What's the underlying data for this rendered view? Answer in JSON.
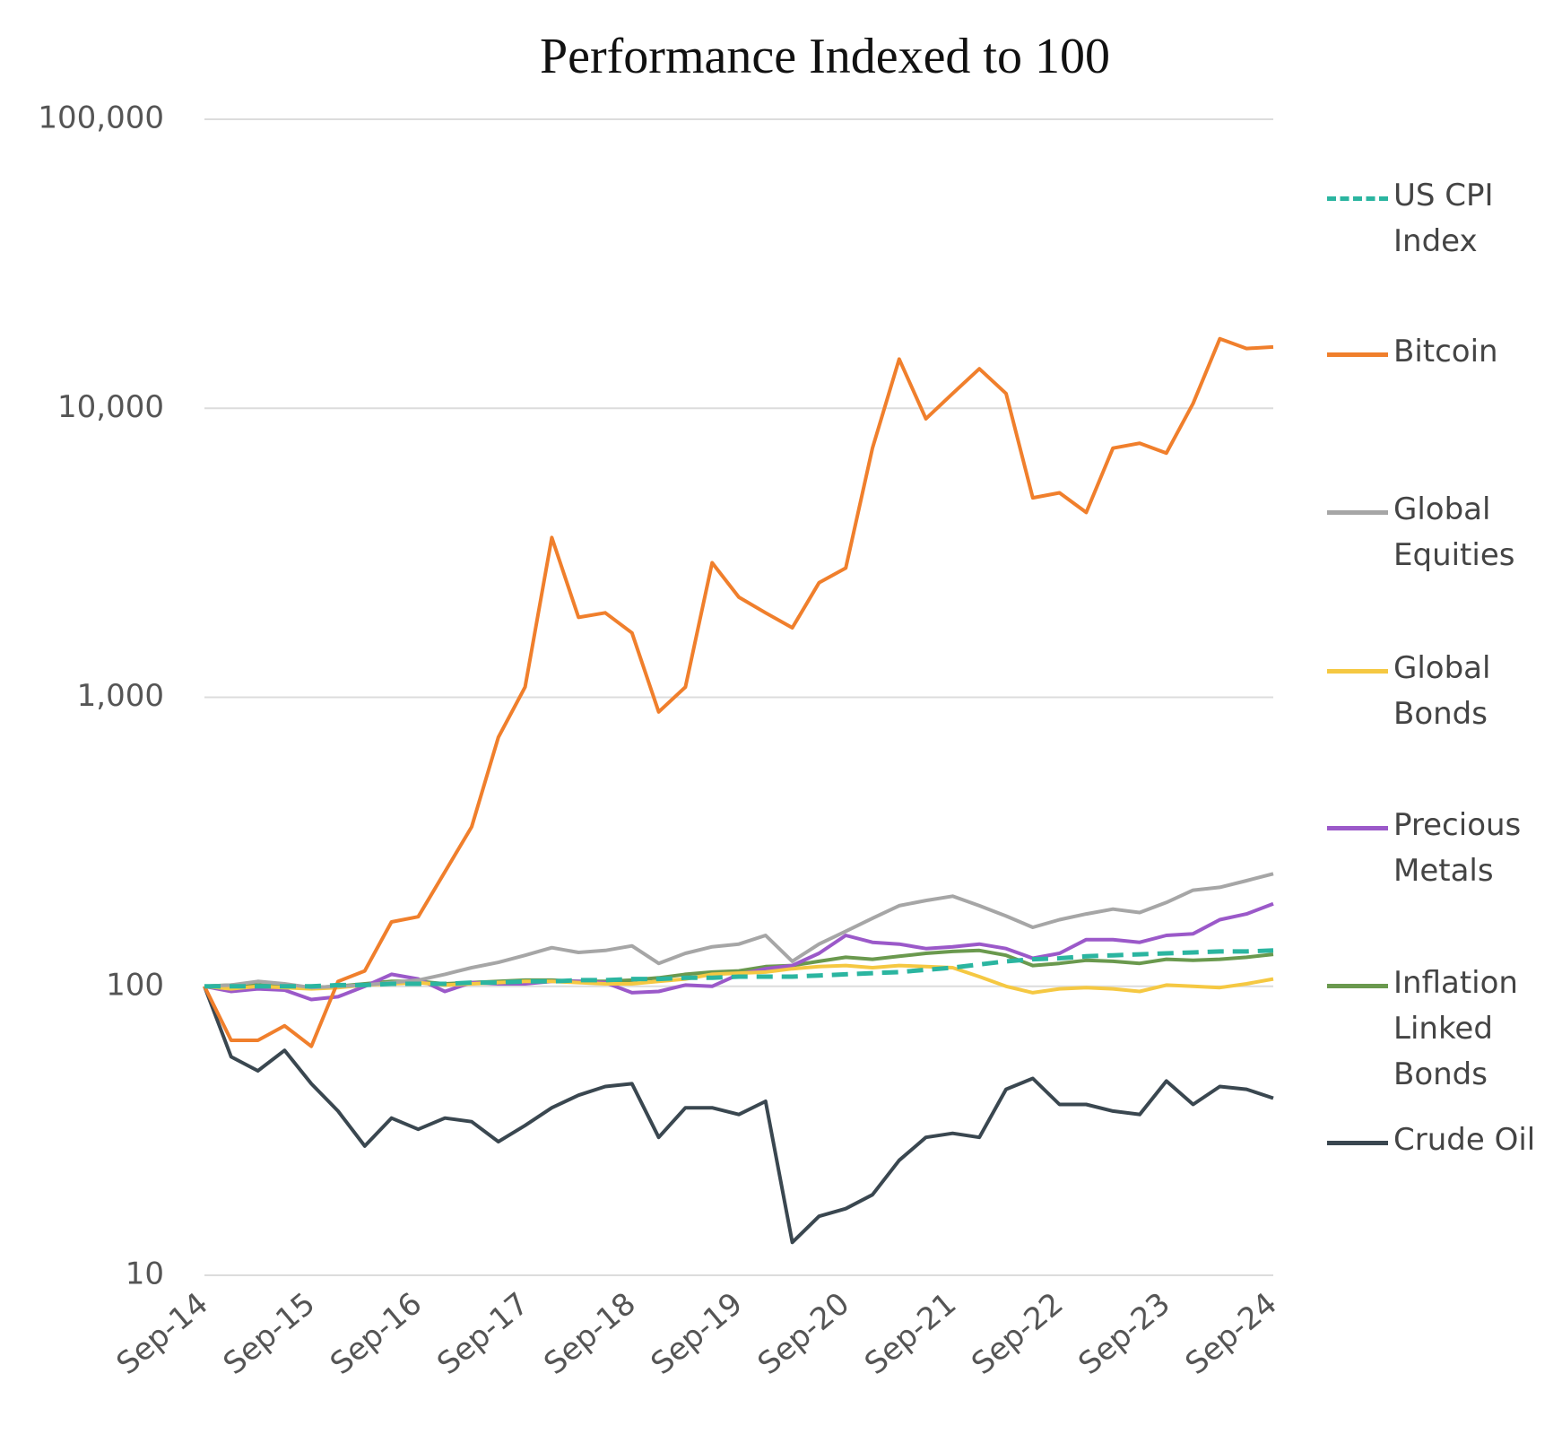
{
  "chart_data": {
    "type": "line",
    "title": "Performance Indexed to 100",
    "log": true,
    "grid": true,
    "legend": "right",
    "ylim": [
      10,
      100000
    ],
    "yticks": [
      10,
      100,
      {
        "value": 1000,
        "label": "1,000"
      },
      {
        "value": 10000,
        "label": "10,000"
      },
      {
        "value": 100000,
        "label": "100,000"
      }
    ],
    "categories": [
      "Sep-14",
      null,
      null,
      null,
      "Sep-15",
      null,
      null,
      null,
      "Sep-16",
      null,
      null,
      null,
      "Sep-17",
      null,
      null,
      null,
      "Sep-18",
      null,
      null,
      null,
      "Sep-19",
      null,
      null,
      null,
      "Sep-20",
      null,
      null,
      null,
      "Sep-21",
      null,
      null,
      null,
      "Sep-22",
      null,
      null,
      null,
      "Sep-23",
      null,
      null,
      null,
      "Sep-24"
    ],
    "series": [
      {
        "name": "US CPI Index",
        "color": "#2bb5a0",
        "dashed": true,
        "values": [
          100,
          100,
          100,
          100,
          100,
          101,
          101,
          102,
          102,
          102,
          103,
          103,
          104,
          104,
          105,
          105,
          106,
          106,
          107,
          107,
          108,
          108,
          108,
          109,
          110,
          111,
          112,
          114,
          116,
          119,
          122,
          124,
          125,
          127,
          128,
          129,
          130,
          131,
          132,
          132,
          133
        ]
      },
      {
        "name": "Bitcoin",
        "color": "#f07f2c",
        "values": [
          100,
          65,
          65,
          73,
          62,
          104,
          113,
          167,
          174,
          249,
          356,
          727,
          1085,
          3570,
          1890,
          1960,
          1670,
          890,
          1085,
          2920,
          2220,
          1960,
          1740,
          2490,
          2800,
          7280,
          14800,
          9200,
          11250,
          13700,
          11250,
          4900,
          5100,
          4360,
          7280,
          7570,
          7000,
          10400,
          17400,
          16100,
          16300
        ]
      },
      {
        "name": "Global Equities",
        "color": "#a6a6a6",
        "values": [
          100,
          101,
          104,
          102,
          99,
          100,
          101,
          103,
          105,
          110,
          116,
          121,
          128,
          136,
          131,
          133,
          138,
          120,
          130,
          137,
          140,
          150,
          122,
          140,
          155,
          172,
          190,
          198,
          205,
          190,
          175,
          160,
          170,
          178,
          185,
          180,
          195,
          215,
          220,
          232,
          245
        ]
      },
      {
        "name": "Global Bonds",
        "color": "#f5c842",
        "values": [
          100,
          98,
          100,
          99,
          98,
          99,
          101,
          102,
          103,
          101,
          102,
          103,
          104,
          104,
          103,
          102,
          102,
          104,
          106,
          110,
          111,
          112,
          115,
          117,
          118,
          116,
          118,
          117,
          116,
          108,
          100,
          95,
          98,
          99,
          98,
          96,
          101,
          100,
          99,
          102,
          106
        ]
      },
      {
        "name": "Precious Metals",
        "color": "#9b59c9",
        "values": [
          100,
          96,
          98,
          97,
          90,
          92,
          100,
          110,
          106,
          96,
          103,
          102,
          102,
          104,
          104,
          103,
          95,
          96,
          101,
          100,
          110,
          115,
          118,
          130,
          150,
          142,
          140,
          135,
          137,
          140,
          135,
          125,
          130,
          145,
          145,
          142,
          150,
          152,
          170,
          178,
          193
        ]
      },
      {
        "name": "Inflation Linked Bonds",
        "color": "#6a994e",
        "values": [
          100,
          101,
          101,
          100,
          99,
          100,
          102,
          104,
          104,
          102,
          103,
          104,
          105,
          105,
          104,
          104,
          105,
          107,
          110,
          112,
          113,
          117,
          118,
          122,
          126,
          124,
          127,
          130,
          132,
          133,
          128,
          118,
          120,
          123,
          122,
          120,
          124,
          123,
          124,
          126,
          129
        ]
      },
      {
        "name": "Crude Oil",
        "color": "#3a4750",
        "values": [
          100,
          57,
          51,
          60,
          46,
          37,
          28,
          35,
          32,
          35,
          34,
          29,
          33,
          38,
          42,
          45,
          46,
          30,
          38,
          38,
          36,
          40,
          13,
          16,
          17,
          19,
          25,
          30,
          31,
          30,
          44,
          48,
          39,
          39,
          37,
          36,
          47,
          39,
          45,
          44,
          41
        ]
      }
    ]
  }
}
